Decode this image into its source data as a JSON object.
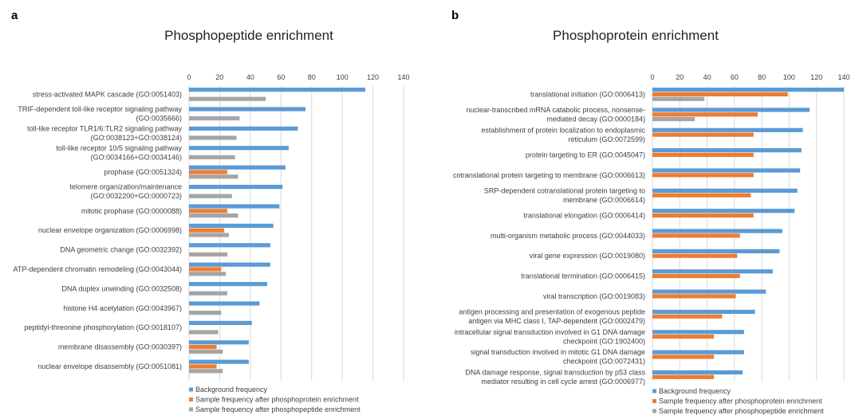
{
  "colors": {
    "background_freq": "#5b9bd5",
    "sample_phosphoprotein": "#ed7d31",
    "sample_phosphopeptide": "#a5a5a5",
    "gridline": "#d9d9d9",
    "text": "#404040"
  },
  "legend": {
    "background": "Background frequency",
    "phosphoprotein": "Sample frequency after phosphoprotein enrichment",
    "phosphopeptide": "Sample frequency after phosphopeptide enrichment"
  },
  "chart_data": [
    {
      "panel": "a",
      "type": "bar",
      "orientation": "horizontal",
      "title": "Phosphopeptide enrichment",
      "xlim": [
        0,
        140
      ],
      "ticks": [
        0,
        20,
        40,
        60,
        80,
        100,
        120,
        140
      ],
      "grid": true,
      "legend_position": "bottom",
      "categories": [
        [
          "stress-activated MAPK cascade (GO:0051403)"
        ],
        [
          "TRIF-dependent toll-like receptor signaling pathway",
          "(GO:0035666)"
        ],
        [
          "toll-like receptor TLR1/6:TLR2 signaling pathway",
          "(GO:0038123+GO:0038124)"
        ],
        [
          "toll-like receptor 10/5 signaling pathway",
          "(GO:0034166+GO:0034146)"
        ],
        [
          "prophase (GO:0051324)"
        ],
        [
          "telomere organization/maintenance",
          "(GO:0032200+GO:0000723)"
        ],
        [
          "mitotic prophase (GO:0000088)"
        ],
        [
          "nuclear envelope organization (GO:0006998)"
        ],
        [
          "DNA geometric change (GO:0032392)"
        ],
        [
          "ATP-dependent chromatin remodeling (GO:0043044)"
        ],
        [
          "DNA duplex unwinding (GO:0032508)"
        ],
        [
          "histone H4 acetylation (GO:0043967)"
        ],
        [
          "peptidyl-threonine phosphorylation (GO:0018107)"
        ],
        [
          "membrane disassembly (GO:0030397)"
        ],
        [
          "nuclear envelope disassembly (GO:0051081)"
        ]
      ],
      "series": [
        {
          "name": "Background frequency",
          "color_key": "background_freq",
          "values": [
            115,
            76,
            71,
            65,
            63,
            61,
            59,
            55,
            53,
            53,
            51,
            46,
            41,
            39,
            39
          ]
        },
        {
          "name": "Sample frequency after phosphoprotein enrichment",
          "color_key": "sample_phosphoprotein",
          "values": [
            null,
            null,
            null,
            null,
            25,
            null,
            25,
            23,
            null,
            21,
            null,
            null,
            null,
            18,
            18
          ]
        },
        {
          "name": "Sample frequency after phosphopeptide enrichment",
          "color_key": "sample_phosphopeptide",
          "values": [
            50,
            33,
            31,
            30,
            32,
            28,
            32,
            26,
            25,
            24,
            25,
            21,
            19,
            22,
            22
          ]
        }
      ]
    },
    {
      "panel": "b",
      "type": "bar",
      "orientation": "horizontal",
      "title": "Phosphoprotein enrichment",
      "xlim": [
        0,
        140
      ],
      "ticks": [
        0,
        20,
        40,
        60,
        80,
        100,
        120,
        140
      ],
      "grid": true,
      "legend_position": "bottom",
      "categories": [
        [
          "translational initiation (GO:0006413)"
        ],
        [
          "nuclear-transcribed mRNA catabolic process, nonsense-",
          "mediated decay (GO:0000184)"
        ],
        [
          "establishment of protein localization to endoplasmic",
          "reticulum (GO:0072599)"
        ],
        [
          "protein targeting to ER (GO:0045047)"
        ],
        [
          "cotranslational protein targeting to membrane (GO:0006613)"
        ],
        [
          "SRP-dependent cotranslational protein targeting to",
          "membrane (GO:0006614)"
        ],
        [
          "translational elongation (GO:0006414)"
        ],
        [
          "multi-organism metabolic process (GO:0044033)"
        ],
        [
          "viral gene expression (GO:0019080)"
        ],
        [
          "translational termination (GO:0006415)"
        ],
        [
          "viral transcription (GO:0019083)"
        ],
        [
          "antigen processing and presentation of exogenous peptide",
          "antigen via MHC class I, TAP-dependent (GO:0002479)"
        ],
        [
          "intracellular signal transduction involved in G1 DNA damage",
          "checkpoint (GO:1902400)"
        ],
        [
          "signal transduction involved in mitotic G1 DNA damage",
          "checkpoint (GO:0072431)"
        ],
        [
          "DNA damage response, signal transduction by p53 class",
          "mediator resulting in cell cycle arrest (GO:0006977)"
        ]
      ],
      "series": [
        {
          "name": "Background frequency",
          "color_key": "background_freq",
          "values": [
            140,
            115,
            110,
            109,
            108,
            106,
            104,
            95,
            93,
            88,
            83,
            75,
            67,
            67,
            66
          ]
        },
        {
          "name": "Sample frequency after phosphoprotein enrichment",
          "color_key": "sample_phosphoprotein",
          "values": [
            99,
            77,
            74,
            74,
            74,
            72,
            74,
            64,
            62,
            64,
            61,
            51,
            45,
            45,
            45
          ]
        },
        {
          "name": "Sample frequency after phosphopeptide enrichment",
          "color_key": "sample_phosphopeptide",
          "values": [
            38,
            31,
            null,
            null,
            null,
            null,
            null,
            null,
            null,
            null,
            null,
            null,
            null,
            null,
            null
          ]
        }
      ]
    }
  ]
}
